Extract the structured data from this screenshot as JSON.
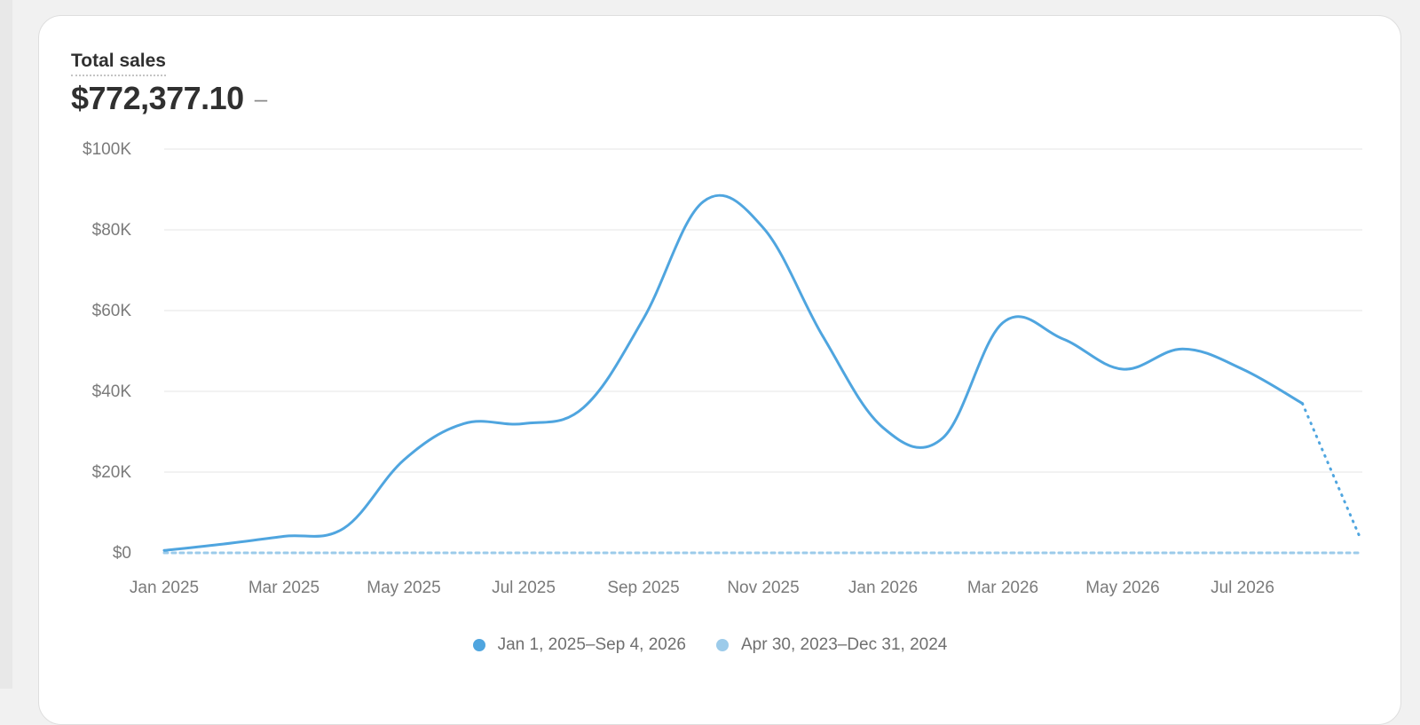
{
  "metric": {
    "title": "Total sales",
    "value": "$772,377.10",
    "delta": "–"
  },
  "colors": {
    "primary": "#4fa5df",
    "comparison": "#9ccbea",
    "grid": "#e6e6e6"
  },
  "chart_data": {
    "type": "line",
    "title": "Total sales",
    "xlabel": "",
    "ylabel": "",
    "ylim": [
      0,
      100000
    ],
    "yticks": [
      {
        "value": 0,
        "label": "$0"
      },
      {
        "value": 20000,
        "label": "$20K"
      },
      {
        "value": 40000,
        "label": "$40K"
      },
      {
        "value": 60000,
        "label": "$60K"
      },
      {
        "value": 80000,
        "label": "$80K"
      },
      {
        "value": 100000,
        "label": "$100K"
      }
    ],
    "xticks": [
      "Jan 2025",
      "Mar 2025",
      "May 2025",
      "Jul 2025",
      "Sep 2025",
      "Nov 2025",
      "Jan 2026",
      "Mar 2026",
      "May 2026",
      "Jul 2026"
    ],
    "grid": true,
    "legend_position": "bottom-center",
    "categories": [
      "Jan 2025",
      "Feb 2025",
      "Mar 2025",
      "Apr 2025",
      "May 2025",
      "Jun 2025",
      "Jul 2025",
      "Aug 2025",
      "Sep 2025",
      "Oct 2025",
      "Nov 2025",
      "Dec 2025",
      "Jan 2026",
      "Feb 2026",
      "Mar 2026",
      "Apr 2026",
      "May 2026",
      "Jun 2026",
      "Jul 2026",
      "Aug 2026",
      "Sep 2026"
    ],
    "series": [
      {
        "name": "Jan 1, 2025–Sep 4, 2026",
        "values": [
          600,
          2200,
          4100,
          6100,
          23000,
          32000,
          32000,
          36000,
          58000,
          87000,
          80500,
          53500,
          31000,
          28500,
          57000,
          53000,
          45500,
          50500,
          45500,
          37000,
          3500
        ],
        "partial_last_point": true
      },
      {
        "name": "Apr 30, 2023–Dec 31, 2024",
        "values": [
          0,
          0,
          0,
          0,
          0,
          0,
          0,
          0,
          0,
          0,
          0,
          0,
          0,
          0,
          0,
          0,
          0,
          0,
          0,
          0,
          0
        ],
        "style": "dashed"
      }
    ]
  }
}
